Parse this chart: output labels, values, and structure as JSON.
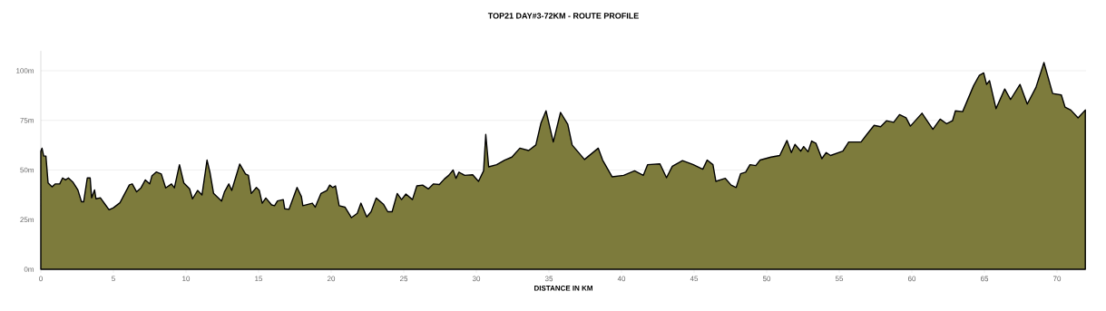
{
  "chart_data": {
    "type": "area",
    "title": "TOP21 DAY#3-72KM - ROUTE PROFILE",
    "xlabel": "DISTANCE IN KM",
    "xlim": [
      0,
      72
    ],
    "ylim": [
      0,
      110
    ],
    "xticks": [
      0,
      5,
      10,
      15,
      20,
      25,
      30,
      35,
      40,
      45,
      50,
      55,
      60,
      65,
      70
    ],
    "yticks": [
      {
        "value": 0,
        "label": "0m"
      },
      {
        "value": 25,
        "label": "25m"
      },
      {
        "value": 50,
        "label": "50m"
      },
      {
        "value": 75,
        "label": "75m"
      },
      {
        "value": 100,
        "label": "100m"
      }
    ],
    "grid": "y",
    "series": [
      {
        "color": "#7d7b3c",
        "x": [
          0,
          0.08,
          0.2,
          0.35,
          0.5,
          0.77,
          1.0,
          1.3,
          1.5,
          1.7,
          1.9,
          2.2,
          2.55,
          2.8,
          2.95,
          3.2,
          3.4,
          3.5,
          3.7,
          3.8,
          4.1,
          4.4,
          4.7,
          5.0,
          5.45,
          6.1,
          6.3,
          6.6,
          6.9,
          7.2,
          7.5,
          7.65,
          7.95,
          8.3,
          8.6,
          9.0,
          9.2,
          9.55,
          9.85,
          10.25,
          10.45,
          10.8,
          11.1,
          11.45,
          11.65,
          11.9,
          12.45,
          12.65,
          12.95,
          13.15,
          13.7,
          14.1,
          14.3,
          14.5,
          14.85,
          15.05,
          15.25,
          15.5,
          15.9,
          16.1,
          16.3,
          16.7,
          16.8,
          17.1,
          17.65,
          17.95,
          18.05,
          18.7,
          18.9,
          19.3,
          19.7,
          19.9,
          20.1,
          20.3,
          20.55,
          20.95,
          21.4,
          21.8,
          22.05,
          22.45,
          22.75,
          23.1,
          23.6,
          23.9,
          24.2,
          24.55,
          24.85,
          25.15,
          25.6,
          25.9,
          26.3,
          26.7,
          27.05,
          27.45,
          27.8,
          28.1,
          28.4,
          28.6,
          28.8,
          29.2,
          29.75,
          30.15,
          30.5,
          30.65,
          30.85,
          31.4,
          31.95,
          32.45,
          33,
          33.6,
          34.1,
          34.45,
          34.8,
          35.3,
          35.8,
          36.3,
          36.6,
          37.45,
          38.4,
          38.7,
          39.35,
          40.15,
          40.9,
          41.5,
          41.8,
          42.65,
          43.1,
          43.5,
          44.2,
          44.95,
          45.6,
          45.9,
          46.3,
          46.5,
          47.15,
          47.55,
          47.9,
          48.2,
          48.55,
          48.85,
          49.25,
          49.55,
          50.3,
          50.9,
          51.4,
          51.7,
          51.95,
          52.35,
          52.55,
          52.85,
          53.1,
          53.4,
          53.8,
          54.1,
          54.4,
          55.25,
          55.65,
          56.5,
          56.9,
          57.4,
          57.85,
          58.25,
          58.75,
          59.15,
          59.6,
          59.9,
          60.7,
          61.45,
          61.95,
          62.4,
          62.8,
          63,
          63.5,
          64.25,
          64.65,
          64.95,
          65.15,
          65.35,
          65.8,
          66.4,
          66.8,
          67.45,
          67.95,
          68.55,
          69.1,
          69.7,
          70.3,
          70.55,
          70.95,
          71.45,
          71.95
        ],
        "values": [
          59.5,
          61,
          57,
          57,
          43.5,
          41.5,
          43,
          43,
          46,
          45,
          46,
          44,
          40,
          34,
          34,
          46,
          46,
          36,
          40,
          35.5,
          36,
          33,
          30,
          31,
          33.5,
          42.5,
          43,
          39,
          41,
          45,
          43,
          47,
          49,
          48,
          41,
          43,
          41,
          52.7,
          43.5,
          40.5,
          35.5,
          39.7,
          37.4,
          55,
          48.9,
          38.2,
          34.4,
          39,
          43,
          39.7,
          53,
          48,
          47.3,
          38.2,
          41.2,
          39.7,
          33.3,
          35.9,
          32.4,
          32,
          34.4,
          35.1,
          30.5,
          30.2,
          41.2,
          36.6,
          32,
          33.3,
          31.3,
          38.2,
          39.7,
          42.4,
          41.2,
          42,
          32,
          31.3,
          26,
          28.2,
          33.3,
          26.4,
          29,
          35.9,
          32.8,
          29,
          29,
          38.2,
          35.1,
          37.9,
          35.1,
          42,
          42.4,
          40.5,
          43,
          42.7,
          45.5,
          47.3,
          50,
          45.8,
          48.9,
          47.3,
          47.6,
          44.3,
          49.6,
          67.9,
          51.6,
          52.7,
          55,
          56.5,
          61,
          59.8,
          62.6,
          73.6,
          79.8,
          64.1,
          79,
          73,
          62.6,
          55.3,
          61,
          55,
          46.6,
          47.3,
          49.6,
          47.3,
          52.7,
          53.1,
          46.1,
          51.9,
          54.7,
          52.7,
          50.4,
          55,
          52.7,
          44.3,
          45.8,
          42.4,
          41.2,
          48.1,
          48.9,
          52.7,
          52.2,
          55,
          56.5,
          57.3,
          64.9,
          58.8,
          62.9,
          59.5,
          61.8,
          59.2,
          64.6,
          63.4,
          55.7,
          58.8,
          57.3,
          59.5,
          64.1,
          64.1,
          67.9,
          72.5,
          71.8,
          74.8,
          74,
          77.9,
          76.3,
          72.1,
          78.6,
          70.5,
          75.6,
          73.3,
          74.8,
          79.8,
          79.4,
          92.4,
          97.7,
          98.9,
          93.1,
          95,
          80.9,
          90.8,
          85.5,
          93.1,
          83.2,
          91.6,
          104.1,
          88.5,
          87.8,
          81.7,
          80.2,
          76.3,
          80.2
        ]
      }
    ]
  }
}
